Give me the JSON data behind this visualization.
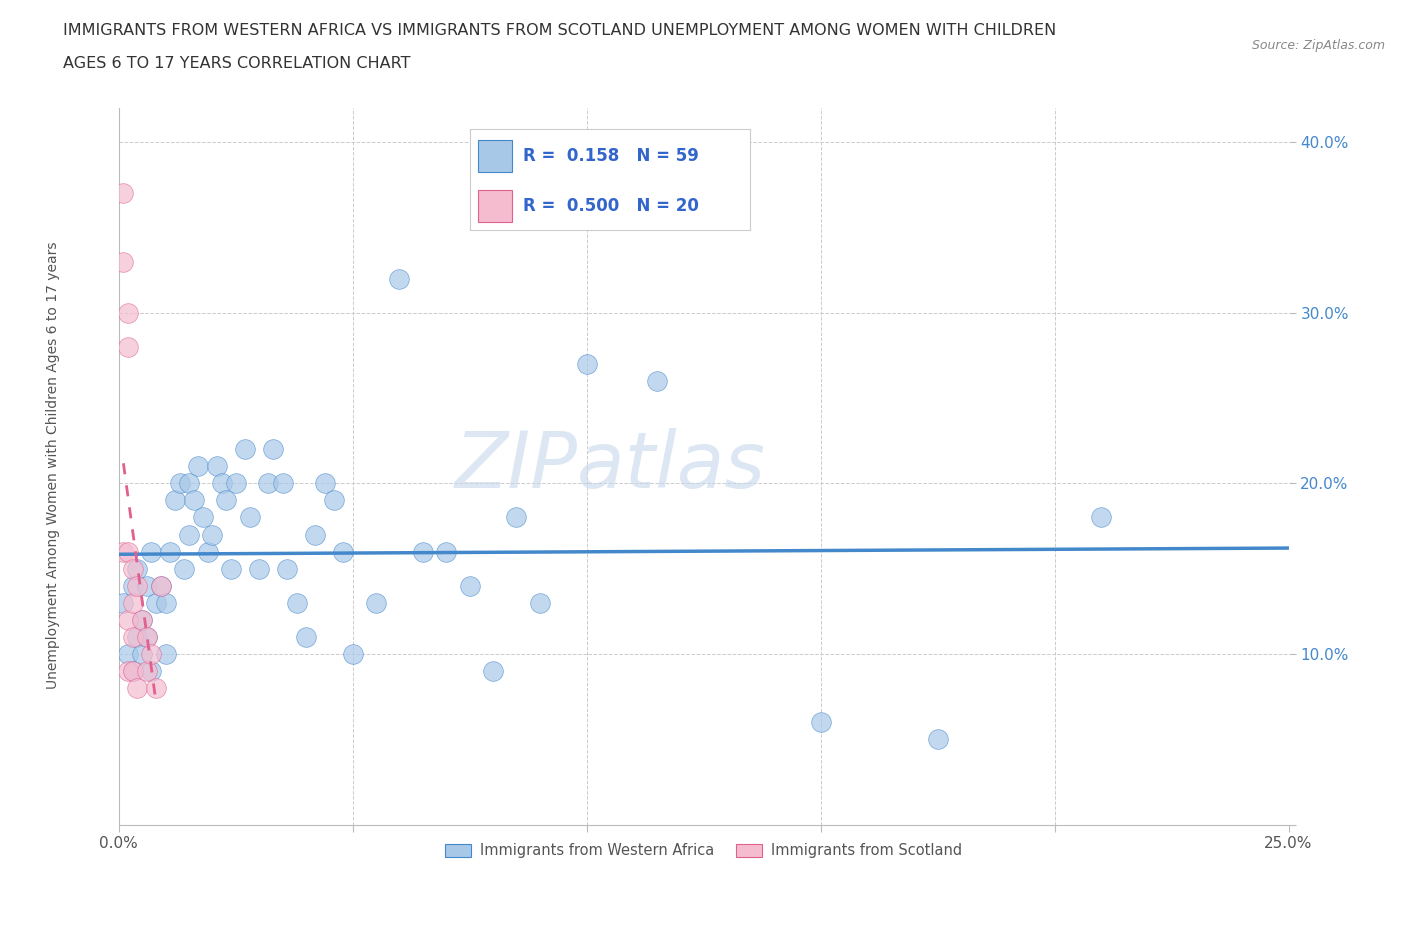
{
  "title_line1": "IMMIGRANTS FROM WESTERN AFRICA VS IMMIGRANTS FROM SCOTLAND UNEMPLOYMENT AMONG WOMEN WITH CHILDREN",
  "title_line2": "AGES 6 TO 17 YEARS CORRELATION CHART",
  "source_text": "Source: ZipAtlas.com",
  "ylabel": "Unemployment Among Women with Children Ages 6 to 17 years",
  "xlim": [
    0.0,
    0.25
  ],
  "ylim": [
    0.0,
    0.42
  ],
  "xticks": [
    0.0,
    0.05,
    0.1,
    0.15,
    0.2,
    0.25
  ],
  "yticks": [
    0.0,
    0.1,
    0.2,
    0.3,
    0.4
  ],
  "background_color": "#ffffff",
  "watermark_text": "ZIPatlas",
  "legend_R1": "0.158",
  "legend_N1": "59",
  "legend_R2": "0.500",
  "legend_N2": "20",
  "color_western_africa": "#a8c8e8",
  "color_scotland": "#f5bcd0",
  "trendline1_color": "#4488cc",
  "trendline2_color": "#e06090",
  "western_africa_x": [
    0.001,
    0.002,
    0.003,
    0.003,
    0.004,
    0.004,
    0.005,
    0.005,
    0.006,
    0.006,
    0.007,
    0.007,
    0.008,
    0.009,
    0.01,
    0.01,
    0.011,
    0.012,
    0.013,
    0.014,
    0.015,
    0.015,
    0.016,
    0.017,
    0.018,
    0.019,
    0.02,
    0.021,
    0.022,
    0.023,
    0.024,
    0.025,
    0.027,
    0.028,
    0.03,
    0.032,
    0.033,
    0.035,
    0.036,
    0.038,
    0.04,
    0.042,
    0.044,
    0.046,
    0.048,
    0.05,
    0.055,
    0.06,
    0.065,
    0.07,
    0.075,
    0.08,
    0.085,
    0.09,
    0.1,
    0.115,
    0.15,
    0.175,
    0.21
  ],
  "western_africa_y": [
    0.13,
    0.1,
    0.14,
    0.09,
    0.11,
    0.15,
    0.1,
    0.12,
    0.11,
    0.14,
    0.09,
    0.16,
    0.13,
    0.14,
    0.1,
    0.13,
    0.16,
    0.19,
    0.2,
    0.15,
    0.17,
    0.2,
    0.19,
    0.21,
    0.18,
    0.16,
    0.17,
    0.21,
    0.2,
    0.19,
    0.15,
    0.2,
    0.22,
    0.18,
    0.15,
    0.2,
    0.22,
    0.2,
    0.15,
    0.13,
    0.11,
    0.17,
    0.2,
    0.19,
    0.16,
    0.1,
    0.13,
    0.32,
    0.16,
    0.16,
    0.14,
    0.09,
    0.18,
    0.13,
    0.27,
    0.26,
    0.06,
    0.05,
    0.18
  ],
  "scotland_x": [
    0.001,
    0.001,
    0.001,
    0.002,
    0.002,
    0.002,
    0.002,
    0.002,
    0.003,
    0.003,
    0.003,
    0.003,
    0.004,
    0.004,
    0.005,
    0.006,
    0.006,
    0.007,
    0.008,
    0.009
  ],
  "scotland_y": [
    0.37,
    0.33,
    0.16,
    0.3,
    0.28,
    0.16,
    0.12,
    0.09,
    0.15,
    0.13,
    0.11,
    0.09,
    0.08,
    0.14,
    0.12,
    0.11,
    0.09,
    0.1,
    0.08,
    0.14
  ],
  "trendline1_x_start": 0.0,
  "trendline1_x_end": 0.25,
  "trendline1_y_start": 0.13,
  "trendline1_y_end": 0.182,
  "trendline2_x_start": 0.0008,
  "trendline2_x_end": 0.01,
  "trendline2_y_start": 0.215,
  "trendline2_y_end": 0.068
}
